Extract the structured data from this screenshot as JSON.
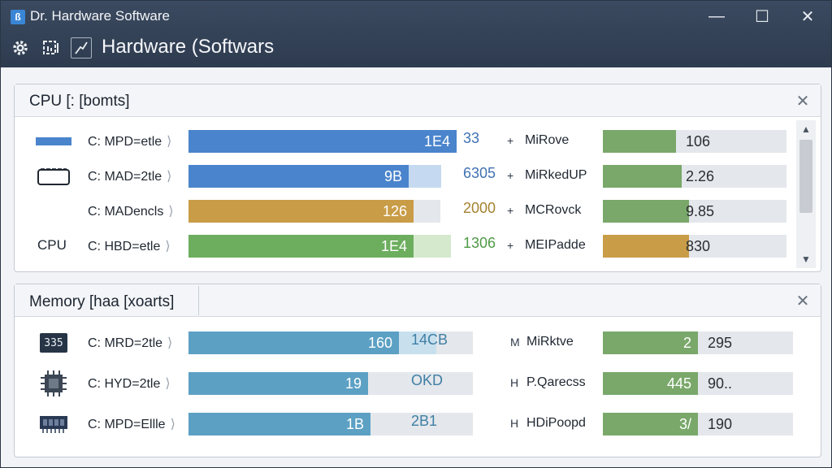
{
  "window": {
    "title": "Dr. Hardware Software",
    "app_icon_glyph": "ß",
    "controls": {
      "minimize": "—",
      "maximize": "☐",
      "close": "✕"
    },
    "toolbar": {
      "icons": [
        "gear-icon",
        "chart-icon",
        "graph-icon"
      ]
    },
    "header_title": "Hardware (Softwars"
  },
  "cpu_panel": {
    "title": "CPU [: [bomts]",
    "close": "✕",
    "side_label": "CPU",
    "scroll": {
      "up": "▲",
      "down": "▼"
    },
    "rows": [
      {
        "icon": "blue-bar-icon",
        "label": "C: MPD=etle",
        "caret": "⟩",
        "bar_value": "1E4",
        "after_value": "33",
        "fill": 1.0,
        "ghost": 0.0,
        "color": "#4a84cc",
        "after_color": "#3f72b3",
        "metric_mark": "+",
        "metric_label": "MiRove",
        "metric_value": "106",
        "metric_fill": 0.4,
        "metric_color": "#79a86a"
      },
      {
        "icon": "panel-outline-icon",
        "label": "C: MAD=2tle",
        "caret": "⟩",
        "bar_value": "9B",
        "after_value": "6305",
        "fill": 0.82,
        "ghost": 0.12,
        "color": "#4a84cc",
        "after_color": "#3f72b3",
        "metric_mark": "+",
        "metric_label": "MiRkedUP",
        "metric_value": "2.26",
        "metric_fill": 0.43,
        "metric_color": "#79a86a"
      },
      {
        "icon": "",
        "label": "C: MADencls",
        "caret": "⟩",
        "bar_value": "126",
        "after_value": "2000",
        "fill": 0.84,
        "ghost": 0.0,
        "color": "#c99c47",
        "after_color": "#a4822f",
        "metric_mark": "+",
        "metric_label": "MCRovck",
        "metric_value": "9.85",
        "metric_fill": 0.47,
        "metric_color": "#79a86a"
      },
      {
        "icon": "",
        "label": "C: HBD=etle",
        "caret": "⟩",
        "bar_value": "1E4",
        "after_value": "1306",
        "fill": 0.84,
        "ghost": 0.14,
        "color": "#6cae5e",
        "after_color": "#4f9a46",
        "metric_mark": "+",
        "metric_label": "MEIPadde",
        "metric_value": "830",
        "metric_fill": 0.47,
        "metric_color": "#c99c47"
      }
    ]
  },
  "memory_panel": {
    "title": "Memory [haa [xoarts]",
    "close": "✕",
    "rows": [
      {
        "icon": "ram-badge-icon",
        "icon_text": "335",
        "label": "C: MRD=2tle",
        "caret": "⟩",
        "bar_value": "160",
        "after_value": "14CB",
        "fill": 0.74,
        "ghost": 0.13,
        "color": "#5ca0c4",
        "after_color": "#3f7fa5",
        "metric_mark": "M",
        "metric_label": "MiRktve",
        "metric_value": "2",
        "metric_value2": "295",
        "metric_fill": 0.5,
        "metric_color": "#79a86a"
      },
      {
        "icon": "cpu-chip-icon",
        "icon_text": "",
        "label": "C: HYD=2tle",
        "caret": "⟩",
        "bar_value": "19",
        "after_value": "OKD",
        "fill": 0.63,
        "ghost": 0.0,
        "color": "#5ca0c4",
        "after_color": "#3f7fa5",
        "metric_mark": "H",
        "metric_label": "P.Qarecss",
        "metric_value": "445",
        "metric_value2": "90..",
        "metric_fill": 0.5,
        "metric_color": "#79a86a"
      },
      {
        "icon": "memory-module-icon",
        "icon_text": "",
        "label": "C: MPD=Ellle",
        "caret": "⟩",
        "bar_value": "1B",
        "after_value": "2B1",
        "fill": 0.64,
        "ghost": 0.0,
        "color": "#5ca0c4",
        "after_color": "#3f7fa5",
        "metric_mark": "H",
        "metric_label": "HDiPoopd",
        "metric_value": "3/",
        "metric_value2": "190",
        "metric_fill": 0.5,
        "metric_color": "#79a86a"
      }
    ]
  },
  "colors": {
    "titlebar": "#2e3b4f",
    "track": "#e4e7eb",
    "ghost_blue": "#c5daf0",
    "ghost_green": "#d5e9cd",
    "ghost_teal": "#c8e0ee"
  }
}
